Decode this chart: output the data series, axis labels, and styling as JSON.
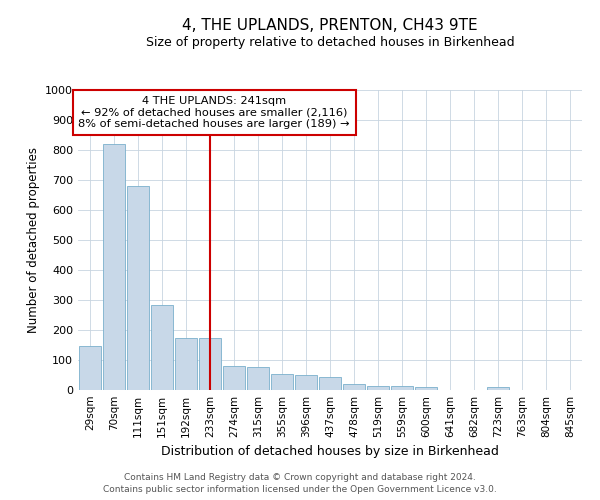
{
  "title": "4, THE UPLANDS, PRENTON, CH43 9TE",
  "subtitle": "Size of property relative to detached houses in Birkenhead",
  "xlabel": "Distribution of detached houses by size in Birkenhead",
  "ylabel": "Number of detached properties",
  "categories": [
    "29sqm",
    "70sqm",
    "111sqm",
    "151sqm",
    "192sqm",
    "233sqm",
    "274sqm",
    "315sqm",
    "355sqm",
    "396sqm",
    "437sqm",
    "478sqm",
    "519sqm",
    "559sqm",
    "600sqm",
    "641sqm",
    "682sqm",
    "723sqm",
    "763sqm",
    "804sqm",
    "845sqm"
  ],
  "values": [
    148,
    820,
    680,
    283,
    172,
    172,
    80,
    78,
    53,
    50,
    42,
    20,
    12,
    12,
    10,
    0,
    0,
    10,
    0,
    0,
    0
  ],
  "bar_color": "#c8d8e8",
  "bar_edge_color": "#7ab0cc",
  "annotation_text_line1": "4 THE UPLANDS: 241sqm",
  "annotation_text_line2": "← 92% of detached houses are smaller (2,116)",
  "annotation_text_line3": "8% of semi-detached houses are larger (189) →",
  "annotation_box_color": "#ffffff",
  "annotation_box_edge": "#cc0000",
  "vline_color": "#cc0000",
  "vline_x": 5.0,
  "ylim": [
    0,
    1000
  ],
  "yticks": [
    0,
    100,
    200,
    300,
    400,
    500,
    600,
    700,
    800,
    900,
    1000
  ],
  "footer_line1": "Contains HM Land Registry data © Crown copyright and database right 2024.",
  "footer_line2": "Contains public sector information licensed under the Open Government Licence v3.0.",
  "background_color": "#ffffff",
  "grid_color": "#c8d4e0"
}
